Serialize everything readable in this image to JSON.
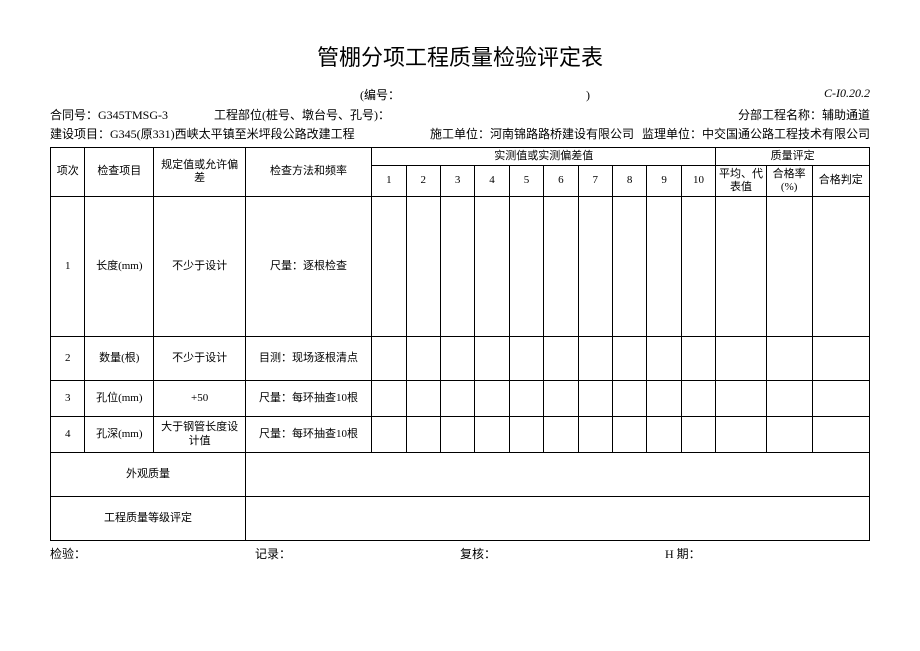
{
  "title": "管棚分项工程质量检验评定表",
  "code_prefix": "(编号：",
  "code_suffix": ")",
  "doc_code": "C-I0.20.2",
  "meta": {
    "contract_label": "合同号：",
    "contract_value": "G345TMSG-3",
    "part_label": "工程部位(桩号、墩台号、孔号)：",
    "sub_label": "分部工程名称：",
    "sub_value": "辅助通道",
    "proj_label": "建设项目：",
    "proj_value": "G345(原331)西峡太平镇至米坪段公路改建工程",
    "builder_label": "施工单位：",
    "builder_value": "河南锦路路桥建设有限公司",
    "super_label": "监理单位：",
    "super_value": "中交国通公路工程技术有限公司"
  },
  "headers": {
    "h_no": "项次",
    "h_item": "检查项目",
    "h_tol": "规定值或允许偏差",
    "h_method": "检查方法和频率",
    "h_measured": "实测值或实测偏差值",
    "h_quality": "质量评定",
    "h_avg": "平均、代表值",
    "h_rate": "合格率(%)",
    "h_judge": "合格判定",
    "nums": [
      "1",
      "2",
      "3",
      "4",
      "5",
      "6",
      "7",
      "8",
      "9",
      "10"
    ]
  },
  "rows": [
    {
      "no": "1",
      "item": "长度(mm)",
      "tol": "不少于设计",
      "method": "尺量：逐根检查",
      "cls": "tall"
    },
    {
      "no": "2",
      "item": "数量(根)",
      "tol": "不少于设计",
      "method": "目测：现场逐根清点",
      "cls": "med"
    },
    {
      "no": "3",
      "item": "孔位(mm)",
      "tol": "+50",
      "method": "尺量：每环抽查10根",
      "cls": "short"
    },
    {
      "no": "4",
      "item": "孔深(mm)",
      "tol": "大于钢管长度设计值",
      "method": "尺量：每环抽查10根",
      "cls": "short"
    }
  ],
  "tail": {
    "appearance": "外观质量",
    "grade": "工程质量等级评定"
  },
  "footer": {
    "check": "检验：",
    "record": "记录：",
    "review": "复核：",
    "date": "H 期："
  }
}
